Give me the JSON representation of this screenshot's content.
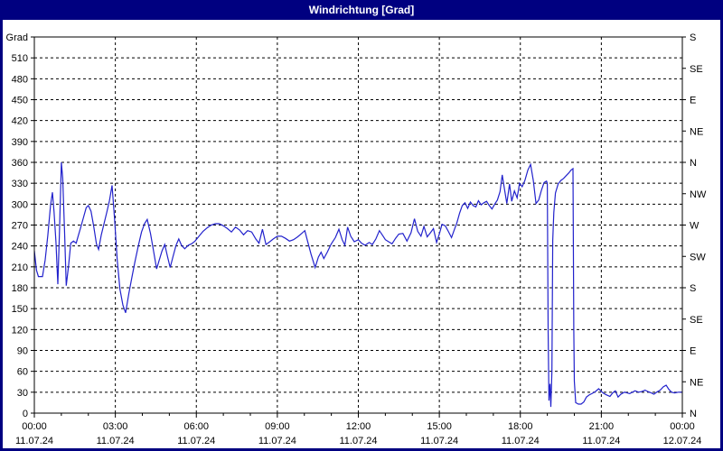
{
  "window": {
    "title": "Windrichtung [Grad]"
  },
  "colors": {
    "titlebar_bg": "#000080",
    "border": "#000080",
    "background": "#ffffff",
    "axis": "#000000",
    "grid": "#000000",
    "label_text": "#000000",
    "series_line": "#2222cc",
    "title_text": "#ffffff"
  },
  "chart_data": {
    "type": "line",
    "title": "Windrichtung [Grad]",
    "ylabel": "Grad",
    "grid": "dashed",
    "legend_position": "none",
    "y_axis_left": {
      "label": "Grad",
      "min": 0,
      "max": 540,
      "tick_step": 30,
      "last_labeled_tick": 510
    },
    "y_axis_right": {
      "tick_step": 45,
      "labels_bottom_to_top": [
        "N",
        "NE",
        "E",
        "SE",
        "S",
        "SW",
        "W",
        "NW",
        "N",
        "NE",
        "E",
        "SE",
        "S"
      ]
    },
    "x_axis": {
      "min_hours": 0,
      "max_hours": 24,
      "minor_tick_hours": 1,
      "major_tick_hours": 3,
      "major_labels": [
        {
          "time": "00:00",
          "date": "11.07.24"
        },
        {
          "time": "03:00",
          "date": "11.07.24"
        },
        {
          "time": "06:00",
          "date": "11.07.24"
        },
        {
          "time": "09:00",
          "date": "11.07.24"
        },
        {
          "time": "12:00",
          "date": "11.07.24"
        },
        {
          "time": "15:00",
          "date": "11.07.24"
        },
        {
          "time": "18:00",
          "date": "11.07.24"
        },
        {
          "time": "21:00",
          "date": "11.07.24"
        },
        {
          "time": "00:00",
          "date": "12.07.24"
        }
      ]
    },
    "series": [
      {
        "name": "Windrichtung",
        "color": "#2222cc",
        "points": [
          [
            0.0,
            233
          ],
          [
            0.08,
            205
          ],
          [
            0.15,
            196
          ],
          [
            0.3,
            196
          ],
          [
            0.4,
            220
          ],
          [
            0.5,
            255
          ],
          [
            0.6,
            298
          ],
          [
            0.67,
            317
          ],
          [
            0.73,
            289
          ],
          [
            0.8,
            246
          ],
          [
            0.87,
            185
          ],
          [
            0.93,
            260
          ],
          [
            1.0,
            360
          ],
          [
            1.05,
            337
          ],
          [
            1.12,
            258
          ],
          [
            1.18,
            183
          ],
          [
            1.27,
            212
          ],
          [
            1.35,
            244
          ],
          [
            1.45,
            247
          ],
          [
            1.55,
            244
          ],
          [
            1.63,
            255
          ],
          [
            1.72,
            267
          ],
          [
            1.82,
            281
          ],
          [
            1.92,
            295
          ],
          [
            2.0,
            298
          ],
          [
            2.1,
            290
          ],
          [
            2.2,
            268
          ],
          [
            2.3,
            243
          ],
          [
            2.38,
            235
          ],
          [
            2.48,
            256
          ],
          [
            2.58,
            272
          ],
          [
            2.68,
            288
          ],
          [
            2.78,
            305
          ],
          [
            2.88,
            327
          ],
          [
            2.97,
            280
          ],
          [
            3.07,
            220
          ],
          [
            3.17,
            178
          ],
          [
            3.28,
            155
          ],
          [
            3.38,
            144
          ],
          [
            3.5,
            172
          ],
          [
            3.62,
            196
          ],
          [
            3.73,
            218
          ],
          [
            3.85,
            240
          ],
          [
            3.97,
            260
          ],
          [
            4.08,
            272
          ],
          [
            4.18,
            278
          ],
          [
            4.3,
            258
          ],
          [
            4.42,
            232
          ],
          [
            4.53,
            207
          ],
          [
            4.63,
            220
          ],
          [
            4.73,
            233
          ],
          [
            4.83,
            242
          ],
          [
            4.93,
            225
          ],
          [
            5.03,
            209
          ],
          [
            5.13,
            224
          ],
          [
            5.25,
            241
          ],
          [
            5.35,
            250
          ],
          [
            5.45,
            241
          ],
          [
            5.57,
            236
          ],
          [
            5.7,
            241
          ],
          [
            5.82,
            243
          ],
          [
            5.95,
            247
          ],
          [
            6.1,
            254
          ],
          [
            6.25,
            261
          ],
          [
            6.4,
            266
          ],
          [
            6.55,
            270
          ],
          [
            6.7,
            272
          ],
          [
            6.85,
            272
          ],
          [
            7.0,
            269
          ],
          [
            7.15,
            265
          ],
          [
            7.3,
            260
          ],
          [
            7.45,
            267
          ],
          [
            7.6,
            263
          ],
          [
            7.75,
            256
          ],
          [
            7.9,
            262
          ],
          [
            8.05,
            260
          ],
          [
            8.2,
            250
          ],
          [
            8.32,
            244
          ],
          [
            8.45,
            264
          ],
          [
            8.58,
            242
          ],
          [
            8.72,
            246
          ],
          [
            8.85,
            250
          ],
          [
            9.0,
            254
          ],
          [
            9.15,
            254
          ],
          [
            9.3,
            251
          ],
          [
            9.45,
            247
          ],
          [
            9.6,
            249
          ],
          [
            9.75,
            253
          ],
          [
            9.9,
            258
          ],
          [
            10.02,
            262
          ],
          [
            10.12,
            247
          ],
          [
            10.25,
            228
          ],
          [
            10.4,
            209
          ],
          [
            10.52,
            224
          ],
          [
            10.62,
            231
          ],
          [
            10.72,
            222
          ],
          [
            10.85,
            231
          ],
          [
            11.0,
            243
          ],
          [
            11.15,
            252
          ],
          [
            11.28,
            264
          ],
          [
            11.4,
            249
          ],
          [
            11.5,
            241
          ],
          [
            11.6,
            267
          ],
          [
            11.72,
            254
          ],
          [
            11.85,
            246
          ],
          [
            12.0,
            249
          ],
          [
            12.12,
            244
          ],
          [
            12.25,
            241
          ],
          [
            12.4,
            245
          ],
          [
            12.52,
            242
          ],
          [
            12.65,
            250
          ],
          [
            12.78,
            262
          ],
          [
            12.9,
            255
          ],
          [
            13.0,
            249
          ],
          [
            13.12,
            246
          ],
          [
            13.25,
            243
          ],
          [
            13.38,
            251
          ],
          [
            13.5,
            257
          ],
          [
            13.65,
            258
          ],
          [
            13.8,
            247
          ],
          [
            13.95,
            259
          ],
          [
            14.08,
            279
          ],
          [
            14.2,
            261
          ],
          [
            14.32,
            254
          ],
          [
            14.43,
            268
          ],
          [
            14.55,
            253
          ],
          [
            14.67,
            259
          ],
          [
            14.78,
            265
          ],
          [
            14.9,
            245
          ],
          [
            15.0,
            257
          ],
          [
            15.1,
            271
          ],
          [
            15.22,
            269
          ],
          [
            15.33,
            261
          ],
          [
            15.45,
            252
          ],
          [
            15.55,
            263
          ],
          [
            15.65,
            273
          ],
          [
            15.75,
            287
          ],
          [
            15.85,
            298
          ],
          [
            15.95,
            302
          ],
          [
            16.05,
            294
          ],
          [
            16.15,
            303
          ],
          [
            16.25,
            298
          ],
          [
            16.35,
            296
          ],
          [
            16.45,
            305
          ],
          [
            16.55,
            299
          ],
          [
            16.65,
            302
          ],
          [
            16.75,
            304
          ],
          [
            16.85,
            298
          ],
          [
            16.95,
            293
          ],
          [
            17.05,
            300
          ],
          [
            17.15,
            306
          ],
          [
            17.25,
            318
          ],
          [
            17.33,
            342
          ],
          [
            17.42,
            320
          ],
          [
            17.5,
            301
          ],
          [
            17.6,
            329
          ],
          [
            17.68,
            304
          ],
          [
            17.78,
            319
          ],
          [
            17.88,
            309
          ],
          [
            17.97,
            330
          ],
          [
            18.07,
            325
          ],
          [
            18.17,
            334
          ],
          [
            18.28,
            349
          ],
          [
            18.38,
            357
          ],
          [
            18.48,
            334
          ],
          [
            18.58,
            301
          ],
          [
            18.68,
            306
          ],
          [
            18.78,
            320
          ],
          [
            18.88,
            331
          ],
          [
            18.97,
            333
          ],
          [
            19.0,
            330
          ],
          [
            19.03,
            120
          ],
          [
            19.06,
            18
          ],
          [
            19.1,
            42
          ],
          [
            19.13,
            9
          ],
          [
            19.17,
            60
          ],
          [
            19.2,
            248
          ],
          [
            19.24,
            288
          ],
          [
            19.3,
            316
          ],
          [
            19.4,
            329
          ],
          [
            19.5,
            334
          ],
          [
            19.6,
            337
          ],
          [
            19.7,
            341
          ],
          [
            19.8,
            345
          ],
          [
            19.88,
            349
          ],
          [
            19.95,
            351
          ],
          [
            19.98,
            120
          ],
          [
            20.0,
            46
          ],
          [
            20.05,
            15
          ],
          [
            20.15,
            13
          ],
          [
            20.25,
            13
          ],
          [
            20.35,
            16
          ],
          [
            20.45,
            23
          ],
          [
            20.55,
            26
          ],
          [
            20.65,
            28
          ],
          [
            20.78,
            31
          ],
          [
            20.9,
            35
          ],
          [
            21.0,
            31
          ],
          [
            21.1,
            28
          ],
          [
            21.2,
            26
          ],
          [
            21.32,
            24
          ],
          [
            21.42,
            29
          ],
          [
            21.52,
            32
          ],
          [
            21.62,
            23
          ],
          [
            21.72,
            27
          ],
          [
            21.85,
            30
          ],
          [
            21.95,
            29
          ],
          [
            22.05,
            28
          ],
          [
            22.15,
            30
          ],
          [
            22.25,
            32
          ],
          [
            22.38,
            30
          ],
          [
            22.5,
            31
          ],
          [
            22.62,
            33
          ],
          [
            22.72,
            31
          ],
          [
            22.85,
            29
          ],
          [
            22.95,
            27
          ],
          [
            23.05,
            30
          ],
          [
            23.18,
            33
          ],
          [
            23.3,
            38
          ],
          [
            23.4,
            40
          ],
          [
            23.5,
            34
          ],
          [
            23.6,
            30
          ],
          [
            23.72,
            29
          ],
          [
            23.85,
            30
          ],
          [
            24.0,
            30
          ]
        ]
      }
    ]
  }
}
